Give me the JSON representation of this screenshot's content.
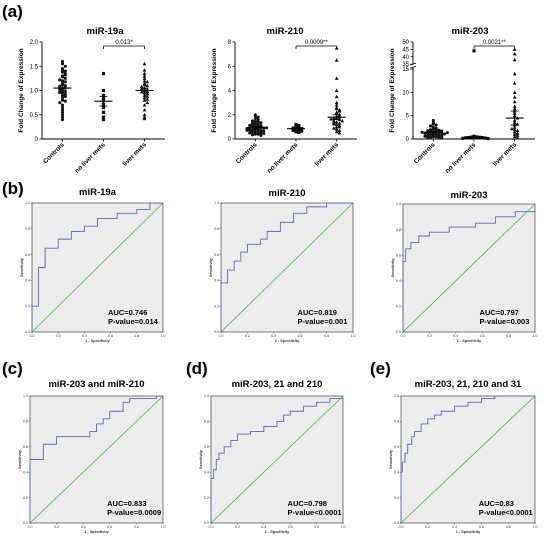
{
  "panel_labels": {
    "a": "(a)",
    "b": "(b)",
    "c": "(c)",
    "d": "(d)",
    "e": "(e)"
  },
  "chart_data": [
    {
      "type": "scatter",
      "panel": "a",
      "title": "miR-19a",
      "ylabel": "Fold Change of Expression",
      "categories": [
        "Controls",
        "no liver mets",
        "liver mets"
      ],
      "ylim": [
        0,
        2
      ],
      "yticks": [
        0,
        0.5,
        1.0,
        1.5,
        2.0
      ],
      "ytick_labels": [
        "0",
        "0.5",
        "1.0",
        "1.5",
        "2.0"
      ],
      "significance": {
        "from": 1,
        "to": 2,
        "label": "0.013*"
      },
      "series": [
        {
          "marker": "circle",
          "mean": 1.05,
          "sem": 0.06,
          "values": [
            1.6,
            1.55,
            1.5,
            1.45,
            1.42,
            1.4,
            1.38,
            1.35,
            1.3,
            1.28,
            1.25,
            1.2,
            1.18,
            1.15,
            1.12,
            1.1,
            1.08,
            1.05,
            1.05,
            1.02,
            1.0,
            0.98,
            0.95,
            0.92,
            0.9,
            0.88,
            0.85,
            0.8,
            0.78,
            0.75,
            0.7,
            0.65,
            0.6,
            0.55,
            0.5,
            0.45,
            0.4,
            1.22,
            1.32,
            0.96
          ]
        },
        {
          "marker": "square",
          "mean": 0.78,
          "sem": 0.1,
          "values": [
            1.35,
            1.0,
            0.9,
            0.85,
            0.8,
            0.72,
            0.65,
            0.55,
            0.45,
            0.4
          ]
        },
        {
          "marker": "triangle",
          "mean": 1.0,
          "sem": 0.05,
          "values": [
            1.55,
            1.42,
            1.35,
            1.3,
            1.25,
            1.2,
            1.15,
            1.12,
            1.1,
            1.08,
            1.05,
            1.02,
            1.0,
            0.98,
            0.95,
            0.93,
            0.9,
            0.88,
            0.85,
            0.82,
            0.8,
            0.75,
            0.7,
            0.6,
            0.5,
            0.45,
            0.42,
            1.18,
            0.97,
            1.03
          ]
        }
      ]
    },
    {
      "type": "scatter",
      "panel": "a",
      "title": "miR-210",
      "ylabel": "Fold Change of Expression",
      "categories": [
        "Controls",
        "no liver mets",
        "liver mets"
      ],
      "ylim": [
        0,
        8
      ],
      "yticks": [
        0,
        2,
        4,
        6,
        8
      ],
      "ytick_labels": [
        "0",
        "2",
        "4",
        "6",
        "8"
      ],
      "significance": {
        "from": 1,
        "to": 2,
        "label": "0.0009**"
      },
      "series": [
        {
          "marker": "circle",
          "mean": 0.95,
          "sem": 0.06,
          "values": [
            2.0,
            1.9,
            1.8,
            1.7,
            1.6,
            1.5,
            1.45,
            1.4,
            1.3,
            1.25,
            1.2,
            1.15,
            1.1,
            1.05,
            1.0,
            1.0,
            0.95,
            0.9,
            0.9,
            0.85,
            0.8,
            0.8,
            0.75,
            0.7,
            0.7,
            0.65,
            0.6,
            0.6,
            0.55,
            0.5,
            0.5,
            0.45,
            0.4,
            0.4,
            0.35,
            0.3,
            1.35,
            1.12,
            0.92,
            0.72
          ]
        },
        {
          "marker": "square",
          "mean": 0.85,
          "sem": 0.06,
          "values": [
            1.2,
            1.1,
            1.0,
            0.95,
            0.9,
            0.85,
            0.8,
            0.75,
            0.7,
            0.65,
            0.6,
            0.55
          ]
        },
        {
          "marker": "triangle",
          "mean": 1.8,
          "sem": 0.2,
          "values": [
            7.5,
            6.5,
            5.0,
            4.0,
            3.5,
            3.0,
            2.8,
            2.6,
            2.5,
            2.4,
            2.2,
            2.1,
            2.0,
            1.9,
            1.8,
            1.7,
            1.6,
            1.5,
            1.5,
            1.4,
            1.3,
            1.2,
            1.1,
            1.0,
            1.0,
            0.9,
            0.8,
            0.7,
            0.6,
            0.5,
            1.75,
            1.65,
            1.35,
            1.25,
            2.3
          ]
        }
      ]
    },
    {
      "type": "scatter",
      "panel": "a",
      "title": "miR-203",
      "ylabel": "Fold Change of Expression",
      "categories": [
        "Controls",
        "no liver mets",
        "liver mets"
      ],
      "ylim": [
        0,
        50
      ],
      "y_break": [
        15,
        35
      ],
      "yticks": [
        0,
        5,
        10,
        15,
        35,
        40,
        45,
        50
      ],
      "ytick_labels": [
        "0",
        "5",
        "10",
        "15",
        "35",
        "40",
        "45",
        "50"
      ],
      "significance": {
        "from": 1,
        "to": 2,
        "label": "0.0021**"
      },
      "series": [
        {
          "marker": "circle",
          "mean": 1.5,
          "sem": 0.2,
          "values": [
            4.0,
            3.5,
            3.2,
            3.0,
            2.8,
            2.5,
            2.3,
            2.2,
            2.0,
            2.0,
            1.9,
            1.8,
            1.7,
            1.6,
            1.5,
            1.5,
            1.4,
            1.3,
            1.2,
            1.2,
            1.1,
            1.0,
            1.0,
            0.9,
            0.8,
            0.8,
            0.7,
            0.6,
            0.5,
            0.5,
            0.4,
            0.3,
            0.3,
            0.2,
            1.45,
            1.35
          ]
        },
        {
          "marker": "square",
          "mean": 0.3,
          "sem": 0.05,
          "values": [
            0.6,
            0.5,
            0.45,
            0.4,
            0.35,
            0.3,
            0.3,
            0.25,
            0.2,
            0.15,
            0.1,
            44.0
          ]
        },
        {
          "marker": "triangle",
          "mean": 4.5,
          "sem": 1.5,
          "values": [
            45.0,
            42.0,
            38.0,
            14.0,
            12.0,
            10.0,
            9.0,
            8.0,
            7.0,
            6.5,
            6.0,
            5.5,
            5.0,
            4.5,
            4.0,
            3.5,
            3.0,
            2.5,
            2.0,
            1.8,
            1.5,
            1.2,
            1.0,
            0.8,
            0.5,
            0.3,
            3.2,
            2.2
          ]
        }
      ]
    },
    {
      "type": "line",
      "panel": "b",
      "title": "miR-19a",
      "xlabel": "1 - Specificity",
      "ylabel": "Sensitivity",
      "xlim": [
        0,
        1
      ],
      "ylim": [
        0,
        1
      ],
      "tick_labels": [
        "0.0",
        "0.2",
        "0.4",
        "0.6",
        "0.8",
        "1.0"
      ],
      "auc_label": "AUC=0.746",
      "p_label": "P-value=0.014",
      "x": [
        0,
        0,
        0.05,
        0.05,
        0.1,
        0.1,
        0.2,
        0.2,
        0.3,
        0.3,
        0.4,
        0.4,
        0.5,
        0.5,
        0.65,
        0.65,
        0.8,
        0.8,
        0.9,
        0.9,
        1.0
      ],
      "y": [
        0,
        0.2,
        0.2,
        0.5,
        0.5,
        0.65,
        0.65,
        0.72,
        0.72,
        0.78,
        0.78,
        0.82,
        0.82,
        0.88,
        0.88,
        0.92,
        0.92,
        0.95,
        0.95,
        1.0,
        1.0
      ]
    },
    {
      "type": "line",
      "panel": "b",
      "title": "miR-210",
      "xlabel": "1 - Specificity",
      "ylabel": "Sensitivity",
      "xlim": [
        0,
        1
      ],
      "ylim": [
        0,
        1
      ],
      "tick_labels": [
        "0.0",
        "0.2",
        "0.4",
        "0.6",
        "0.8",
        "1.0"
      ],
      "auc_label": "AUC=0.819",
      "p_label": "P-value=0.001",
      "x": [
        0,
        0,
        0.05,
        0.05,
        0.1,
        0.1,
        0.15,
        0.15,
        0.2,
        0.2,
        0.3,
        0.3,
        0.35,
        0.35,
        0.45,
        0.45,
        0.55,
        0.55,
        0.65,
        0.65,
        0.8,
        0.8,
        1.0
      ],
      "y": [
        0,
        0.38,
        0.38,
        0.48,
        0.48,
        0.55,
        0.55,
        0.62,
        0.62,
        0.68,
        0.68,
        0.72,
        0.72,
        0.78,
        0.78,
        0.85,
        0.85,
        0.92,
        0.92,
        0.97,
        0.97,
        1.0,
        1.0
      ]
    },
    {
      "type": "line",
      "panel": "b",
      "title": "miR-203",
      "xlabel": "1 - Specificity",
      "ylabel": "Sensitivity",
      "xlim": [
        0,
        1
      ],
      "ylim": [
        0,
        1
      ],
      "tick_labels": [
        "0.0",
        "0.2",
        "0.4",
        "0.6",
        "0.8",
        "1.0"
      ],
      "auc_label": "AUC=0.797",
      "p_label": "P-value=0.003",
      "x": [
        0,
        0,
        0.02,
        0.02,
        0.06,
        0.06,
        0.12,
        0.12,
        0.2,
        0.2,
        0.35,
        0.35,
        0.55,
        0.55,
        0.7,
        0.7,
        0.85,
        0.85,
        1.0
      ],
      "y": [
        0,
        0.55,
        0.55,
        0.65,
        0.65,
        0.7,
        0.7,
        0.75,
        0.75,
        0.78,
        0.78,
        0.82,
        0.82,
        0.85,
        0.85,
        0.9,
        0.9,
        0.94,
        0.94
      ]
    },
    {
      "type": "line",
      "panel": "c",
      "title": "miR-203 and miR-210",
      "xlabel": "1 - Specificity",
      "ylabel": "Sensitivity",
      "xlim": [
        0,
        1
      ],
      "ylim": [
        0,
        1
      ],
      "tick_labels": [
        "0.0",
        "0.2",
        "0.4",
        "0.6",
        "0.8",
        "1.0"
      ],
      "auc_label": "AUC=0.833",
      "p_label": "P-value=0.0009",
      "x": [
        0,
        0,
        0.1,
        0.1,
        0.2,
        0.2,
        0.45,
        0.45,
        0.5,
        0.5,
        0.55,
        0.55,
        0.6,
        0.6,
        0.7,
        0.7,
        0.75,
        0.75,
        0.95,
        0.95,
        1.0
      ],
      "y": [
        0,
        0.5,
        0.5,
        0.62,
        0.62,
        0.68,
        0.68,
        0.72,
        0.72,
        0.78,
        0.78,
        0.82,
        0.82,
        0.88,
        0.88,
        0.95,
        0.95,
        0.98,
        0.98,
        1.0,
        1.0
      ]
    },
    {
      "type": "line",
      "panel": "d",
      "title": "miR-203, 21 and 210",
      "xlabel": "1 - Specificity",
      "ylabel": "Sensitivity",
      "xlim": [
        0,
        1
      ],
      "ylim": [
        0,
        1
      ],
      "tick_labels": [
        "0.0",
        "0.2",
        "0.4",
        "0.6",
        "0.8",
        "1.0"
      ],
      "auc_label": "AUC=0.798",
      "p_label": "P-value<0.0001",
      "x": [
        0,
        0,
        0.02,
        0.02,
        0.04,
        0.04,
        0.06,
        0.06,
        0.1,
        0.1,
        0.15,
        0.15,
        0.2,
        0.2,
        0.3,
        0.3,
        0.4,
        0.4,
        0.5,
        0.5,
        0.55,
        0.55,
        0.6,
        0.6,
        0.7,
        0.7,
        0.8,
        0.8,
        0.9,
        0.9,
        1.0
      ],
      "y": [
        0,
        0.35,
        0.35,
        0.42,
        0.42,
        0.5,
        0.5,
        0.55,
        0.55,
        0.6,
        0.6,
        0.65,
        0.65,
        0.7,
        0.7,
        0.72,
        0.72,
        0.76,
        0.76,
        0.8,
        0.8,
        0.85,
        0.85,
        0.88,
        0.88,
        0.92,
        0.92,
        0.95,
        0.95,
        0.98,
        0.98
      ]
    },
    {
      "type": "line",
      "panel": "e",
      "title": "miR-203, 21, 210 and 31",
      "xlabel": "1 - Specificity",
      "ylabel": "Sensitivity",
      "xlim": [
        0,
        1
      ],
      "ylim": [
        0,
        1
      ],
      "tick_labels": [
        "0.0",
        "0.2",
        "0.4",
        "0.6",
        "0.8",
        "1.0"
      ],
      "auc_label": "AUC=0.83",
      "p_label": "P-value<0.0001",
      "x": [
        0,
        0,
        0.01,
        0.01,
        0.03,
        0.03,
        0.05,
        0.05,
        0.08,
        0.08,
        0.1,
        0.1,
        0.15,
        0.15,
        0.2,
        0.2,
        0.25,
        0.25,
        0.3,
        0.3,
        0.4,
        0.4,
        0.5,
        0.5,
        0.6,
        0.6,
        0.7,
        0.7,
        1.0
      ],
      "y": [
        0,
        0.4,
        0.4,
        0.48,
        0.48,
        0.55,
        0.55,
        0.62,
        0.62,
        0.68,
        0.68,
        0.72,
        0.72,
        0.78,
        0.78,
        0.82,
        0.82,
        0.85,
        0.85,
        0.88,
        0.88,
        0.92,
        0.92,
        0.95,
        0.95,
        0.98,
        0.98,
        1.0,
        1.0
      ]
    }
  ]
}
